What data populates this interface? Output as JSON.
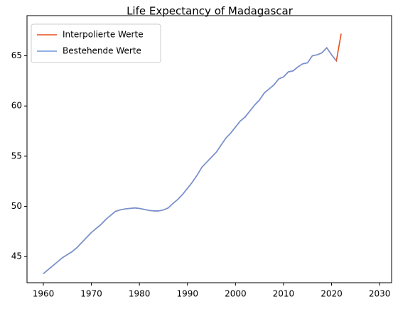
{
  "chart_data": {
    "type": "line",
    "title": "Life Expectancy of Madagascar",
    "x": [
      1960,
      1961,
      1962,
      1963,
      1964,
      1965,
      1966,
      1967,
      1968,
      1969,
      1970,
      1971,
      1972,
      1973,
      1974,
      1975,
      1976,
      1977,
      1978,
      1979,
      1980,
      1981,
      1982,
      1983,
      1984,
      1985,
      1986,
      1987,
      1988,
      1989,
      1990,
      1991,
      1992,
      1993,
      1994,
      1995,
      1996,
      1997,
      1998,
      1999,
      2000,
      2001,
      2002,
      2003,
      2004,
      2005,
      2006,
      2007,
      2008,
      2009,
      2010,
      2011,
      2012,
      2013,
      2014,
      2015,
      2016,
      2017,
      2018,
      2019,
      2020,
      2021,
      2022
    ],
    "series": [
      {
        "name": "Interpolierte Werte",
        "color": "#e8501a",
        "values": [
          43.3,
          43.7,
          44.1,
          44.5,
          44.9,
          45.2,
          45.5,
          45.9,
          46.4,
          46.9,
          47.4,
          47.8,
          48.2,
          48.7,
          49.1,
          49.5,
          49.65,
          49.75,
          49.8,
          49.85,
          49.8,
          49.7,
          49.6,
          49.55,
          49.55,
          49.65,
          49.85,
          50.3,
          50.7,
          51.2,
          51.8,
          52.4,
          53.1,
          53.9,
          54.4,
          54.9,
          55.4,
          56.1,
          56.8,
          57.3,
          57.9,
          58.5,
          58.9,
          59.5,
          60.1,
          60.6,
          61.3,
          61.7,
          62.1,
          62.7,
          62.9,
          63.4,
          63.5,
          63.9,
          64.2,
          64.3,
          65.0,
          65.1,
          65.3,
          65.8,
          65.1,
          64.5,
          67.2
        ]
      },
      {
        "name": "Bestehende Werte",
        "color": "#6f95db",
        "values": [
          43.3,
          43.7,
          44.1,
          44.5,
          44.9,
          45.2,
          45.5,
          45.9,
          46.4,
          46.9,
          47.4,
          47.8,
          48.2,
          48.7,
          49.1,
          49.5,
          49.65,
          49.75,
          49.8,
          49.85,
          49.8,
          49.7,
          49.6,
          49.55,
          49.55,
          49.65,
          49.85,
          50.3,
          50.7,
          51.2,
          51.8,
          52.4,
          53.1,
          53.9,
          54.4,
          54.9,
          55.4,
          56.1,
          56.8,
          57.3,
          57.9,
          58.5,
          58.9,
          59.5,
          60.1,
          60.6,
          61.3,
          61.7,
          62.1,
          62.7,
          62.9,
          63.4,
          63.5,
          63.9,
          64.2,
          64.3,
          65.0,
          65.1,
          65.3,
          65.8,
          65.1,
          64.5,
          null
        ]
      }
    ],
    "xlim": [
      1956.6,
      2032.5
    ],
    "xticks": [
      1960,
      1970,
      1980,
      1990,
      2000,
      2010,
      2020,
      2030
    ],
    "ylim": [
      42.4,
      69.0
    ],
    "yticks": [
      45,
      50,
      55,
      60,
      65
    ],
    "legend": "upper left",
    "grid": false
  }
}
